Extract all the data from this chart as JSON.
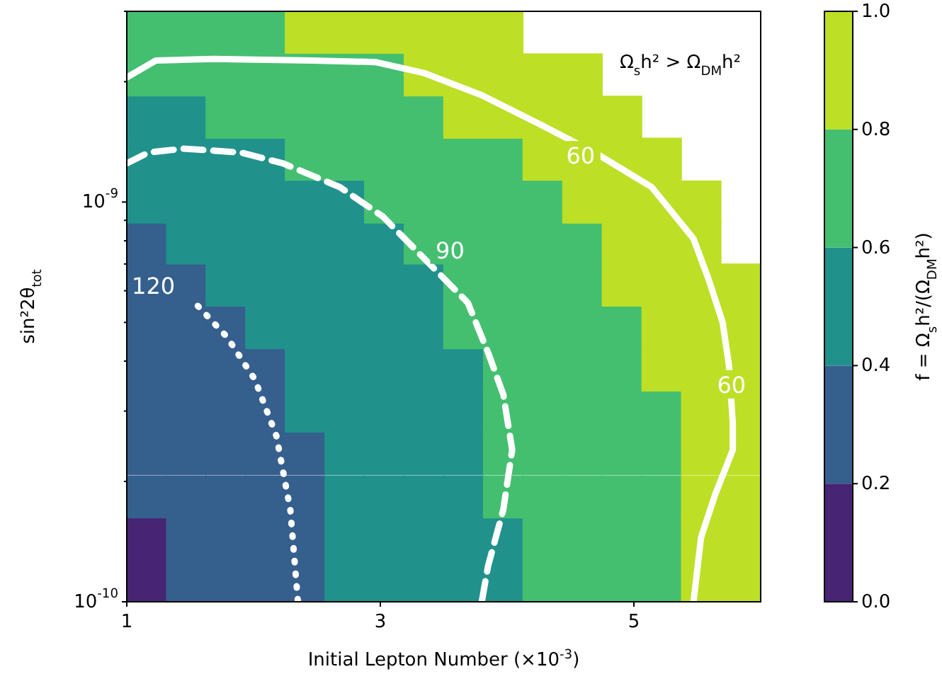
{
  "chart_data": {
    "type": "scatter",
    "marker": "square",
    "xlabel": "Initial Lepton Number (×10$^{-3}$)",
    "ylabel": "sin²2θ$_{tot}$",
    "clabel": "f = Ω$_{s}$h²/(Ω$_{DM}$h²)",
    "xlim": [
      1,
      6
    ],
    "xticks": [
      1,
      3,
      5
    ],
    "ylim": [
      1e-10,
      3e-09
    ],
    "log": "y",
    "yticks": [
      {
        "value": 1e-10,
        "label": "10$^{-10}$"
      },
      {
        "value": 2e-10,
        "label": null
      },
      {
        "value": 3e-10,
        "label": null
      },
      {
        "value": 4e-10,
        "label": null
      },
      {
        "value": 5e-10,
        "label": null
      },
      {
        "value": 6e-10,
        "label": null
      },
      {
        "value": 7e-10,
        "label": null
      },
      {
        "value": 8e-10,
        "label": null
      },
      {
        "value": 9e-10,
        "label": null
      },
      {
        "value": 1e-09,
        "label": "10$^{-9}$"
      },
      {
        "value": 2e-09,
        "label": null
      },
      {
        "value": 3e-09,
        "label": null
      }
    ],
    "clim": [
      0,
      1
    ],
    "cticks": [
      {
        "value": 0,
        "label": "0.0"
      },
      {
        "value": 0.2,
        "label": "0.2"
      },
      {
        "value": 0.4,
        "label": "0.4"
      },
      {
        "value": 0.6,
        "label": "0.6"
      },
      {
        "value": 0.8,
        "label": "0.8"
      },
      {
        "value": 1,
        "label": "1.0"
      }
    ],
    "series": [
      {
        "color": "#482475",
        "x": [
          1.156,
          1.156
        ],
        "values": [
          1.44e-10,
          1.13e-10
        ]
      },
      {
        "color": "#355f8d",
        "x": [
          1.156,
          1.156,
          1.469,
          1.156,
          1.469,
          1.781,
          1.156,
          1.469,
          1.781,
          2.094,
          1.156,
          1.469,
          1.781,
          2.094,
          1.156,
          1.469,
          1.781,
          2.094,
          2.406,
          1.156,
          1.469,
          1.781,
          2.094,
          2.406,
          1.469,
          1.781,
          2.094,
          2.406,
          1.469,
          1.781,
          2.094,
          2.406
        ],
        "values": [
          7.9e-10,
          6.2e-10,
          6.2e-10,
          4.85e-10,
          4.85e-10,
          4.85e-10,
          3.8e-10,
          3.8e-10,
          3.8e-10,
          3.8e-10,
          3e-10,
          3e-10,
          3e-10,
          3e-10,
          2.35e-10,
          2.35e-10,
          2.35e-10,
          2.35e-10,
          2.35e-10,
          1.83e-10,
          1.83e-10,
          1.83e-10,
          1.83e-10,
          1.83e-10,
          1.44e-10,
          1.44e-10,
          1.44e-10,
          1.44e-10,
          1.13e-10,
          1.13e-10,
          1.13e-10,
          1.13e-10
        ]
      },
      {
        "color": "#21918c",
        "x": [
          1.156,
          1.469,
          1.156,
          1.469,
          1.781,
          2.094,
          1.156,
          1.469,
          1.781,
          2.094,
          2.406,
          2.719,
          1.469,
          1.781,
          2.094,
          2.406,
          2.719,
          3.031,
          1.781,
          2.094,
          2.406,
          2.719,
          3.031,
          3.344,
          2.094,
          2.406,
          2.719,
          3.031,
          3.344,
          2.406,
          2.719,
          3.031,
          3.344,
          3.656,
          2.406,
          2.719,
          3.031,
          3.344,
          3.656,
          2.719,
          3.031,
          3.344,
          3.656,
          2.719,
          3.031,
          3.344,
          3.656,
          2.719,
          3.031,
          3.344,
          3.656,
          3.969,
          2.719,
          3.031,
          3.344,
          3.656,
          3.969
        ],
        "values": [
          1.63e-09,
          1.63e-09,
          1.28e-09,
          1.28e-09,
          1.28e-09,
          1.28e-09,
          1e-09,
          1e-09,
          1e-09,
          1e-09,
          1e-09,
          1e-09,
          7.9e-10,
          7.9e-10,
          7.9e-10,
          7.9e-10,
          7.9e-10,
          7.9e-10,
          6.2e-10,
          6.2e-10,
          6.2e-10,
          6.2e-10,
          6.2e-10,
          6.2e-10,
          4.85e-10,
          4.85e-10,
          4.85e-10,
          4.85e-10,
          4.85e-10,
          3.8e-10,
          3.8e-10,
          3.8e-10,
          3.8e-10,
          3.8e-10,
          3e-10,
          3e-10,
          3e-10,
          3e-10,
          3e-10,
          2.35e-10,
          2.35e-10,
          2.35e-10,
          2.35e-10,
          1.83e-10,
          1.83e-10,
          1.83e-10,
          1.83e-10,
          1.44e-10,
          1.44e-10,
          1.44e-10,
          1.44e-10,
          1.44e-10,
          1.13e-10,
          1.13e-10,
          1.13e-10,
          1.13e-10,
          1.13e-10
        ]
      },
      {
        "color": "#44bf70",
        "x": [
          1.156,
          1.469,
          1.781,
          2.094,
          1.156,
          1.469,
          1.781,
          2.094,
          2.406,
          2.719,
          3.031,
          1.781,
          2.094,
          2.406,
          2.719,
          3.031,
          3.344,
          2.406,
          2.719,
          3.031,
          3.344,
          3.656,
          3.969,
          3.031,
          3.344,
          3.656,
          3.969,
          4.281,
          3.344,
          3.656,
          3.969,
          4.281,
          4.594,
          3.656,
          3.969,
          4.281,
          4.594,
          3.656,
          3.969,
          4.281,
          4.594,
          4.906,
          3.969,
          4.281,
          4.594,
          4.906,
          3.969,
          4.281,
          4.594,
          4.906,
          5.219,
          3.969,
          4.281,
          4.594,
          4.906,
          5.219,
          3.969,
          4.281,
          4.594,
          4.906,
          5.219,
          4.281,
          4.594,
          4.906,
          5.219,
          4.281,
          4.594,
          4.906,
          5.219
        ],
        "values": [
          2.66e-09,
          2.66e-09,
          2.66e-09,
          2.66e-09,
          2.08e-09,
          2.08e-09,
          2.08e-09,
          2.08e-09,
          2.08e-09,
          2.08e-09,
          2.08e-09,
          1.63e-09,
          1.63e-09,
          1.63e-09,
          1.63e-09,
          1.63e-09,
          1.63e-09,
          1.28e-09,
          1.28e-09,
          1.28e-09,
          1.28e-09,
          1.28e-09,
          1.28e-09,
          1e-09,
          1e-09,
          1e-09,
          1e-09,
          1e-09,
          7.9e-10,
          7.9e-10,
          7.9e-10,
          7.9e-10,
          7.9e-10,
          6.2e-10,
          6.2e-10,
          6.2e-10,
          6.2e-10,
          4.85e-10,
          4.85e-10,
          4.85e-10,
          4.85e-10,
          4.85e-10,
          3.8e-10,
          3.8e-10,
          3.8e-10,
          3.8e-10,
          3e-10,
          3e-10,
          3e-10,
          3e-10,
          3e-10,
          2.35e-10,
          2.35e-10,
          2.35e-10,
          2.35e-10,
          2.35e-10,
          1.83e-10,
          1.83e-10,
          1.83e-10,
          1.83e-10,
          1.83e-10,
          1.44e-10,
          1.44e-10,
          1.44e-10,
          1.44e-10,
          1.13e-10,
          1.13e-10,
          1.13e-10,
          1.13e-10
        ]
      },
      {
        "color": "#bddf26",
        "x": [
          2.406,
          2.719,
          3.031,
          3.344,
          3.656,
          3.969,
          3.344,
          3.656,
          3.969,
          4.281,
          4.594,
          3.656,
          3.969,
          4.281,
          4.594,
          4.906,
          4.281,
          4.594,
          4.906,
          5.219,
          4.594,
          4.906,
          5.219,
          5.531,
          4.906,
          5.219,
          5.531,
          4.906,
          5.219,
          5.531,
          5.844,
          5.219,
          5.531,
          5.844,
          5.219,
          5.531,
          5.844,
          5.531,
          5.844,
          5.531,
          5.844,
          5.531,
          5.844,
          5.531,
          5.844,
          5.531,
          5.844
        ],
        "values": [
          2.66e-09,
          2.66e-09,
          2.66e-09,
          2.66e-09,
          2.66e-09,
          2.66e-09,
          2.08e-09,
          2.08e-09,
          2.08e-09,
          2.08e-09,
          2.08e-09,
          1.63e-09,
          1.63e-09,
          1.63e-09,
          1.63e-09,
          1.63e-09,
          1.28e-09,
          1.28e-09,
          1.28e-09,
          1.28e-09,
          1e-09,
          1e-09,
          1e-09,
          1e-09,
          7.9e-10,
          7.9e-10,
          7.9e-10,
          6.2e-10,
          6.2e-10,
          6.2e-10,
          6.2e-10,
          4.85e-10,
          4.85e-10,
          4.85e-10,
          3.8e-10,
          3.8e-10,
          3.8e-10,
          3e-10,
          3e-10,
          2.35e-10,
          2.35e-10,
          1.83e-10,
          1.83e-10,
          1.44e-10,
          1.44e-10,
          1.13e-10,
          1.13e-10
        ]
      },
      {
        "type": "line",
        "marker": "none",
        "color": "#ffffff",
        "line_style": "solid",
        "x": [
          1.0,
          1.23,
          1.68,
          2.46,
          2.96,
          3.35,
          3.8,
          4.25,
          4.69,
          5.14,
          5.47,
          5.59,
          5.7,
          5.75,
          5.78,
          5.78,
          5.64,
          5.53,
          5.47
        ],
        "values": [
          2.05e-09,
          2.26e-09,
          2.28e-09,
          2.26e-09,
          2.24e-09,
          2.1e-09,
          1.85e-09,
          1.57e-09,
          1.33e-09,
          1.09e-09,
          8.1e-10,
          6.4e-10,
          5e-10,
          3.9e-10,
          2.8e-10,
          2.4e-10,
          1.85e-10,
          1.45e-10,
          1e-10
        ]
      },
      {
        "type": "line",
        "marker": "none",
        "color": "#ffffff",
        "line_style": "dashed",
        "x": [
          1.0,
          1.17,
          1.45,
          1.9,
          2.23,
          2.68,
          3.02,
          3.35,
          3.69,
          3.85,
          3.97,
          4.04,
          3.97,
          3.85,
          3.8
        ],
        "values": [
          1.25e-09,
          1.33e-09,
          1.36e-09,
          1.33e-09,
          1.25e-09,
          1.09e-09,
          9.2e-10,
          7.2e-10,
          5.6e-10,
          4.2e-10,
          3.3e-10,
          2.4e-10,
          1.7e-10,
          1.23e-10,
          1e-10
        ]
      },
      {
        "type": "line",
        "marker": "none",
        "color": "#ffffff",
        "line_style": "dotted",
        "x": [
          1.56,
          1.79,
          2.01,
          2.18,
          2.29,
          2.35
        ],
        "values": [
          5.5e-10,
          4.6e-10,
          3.6e-10,
          2.6e-10,
          1.7e-10,
          1e-10
        ]
      }
    ],
    "annotations": [
      "Ω$_{s}$h² > Ω$_{DM}$h²",
      {
        "text": "60",
        "x": 4.58,
        "y": 1.31e-09
      },
      {
        "text": "60",
        "x": 5.77,
        "y": 3.5e-10
      },
      {
        "text": "90",
        "x": 3.55,
        "y": 7.6e-10
      },
      {
        "text": "120",
        "x": 1.21,
        "y": 6.2e-10
      }
    ]
  }
}
